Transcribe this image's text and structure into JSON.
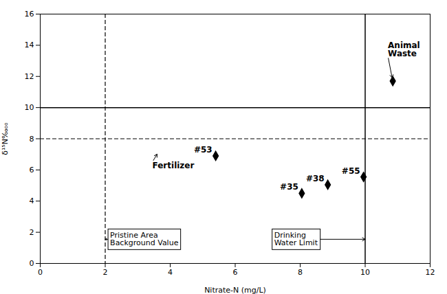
{
  "chart_data": {
    "type": "scatter",
    "xlabel": "Nitrate-N (mg/L)",
    "ylabel": "δ¹⁵N‰ₒₒ",
    "xlim": [
      0,
      12
    ],
    "ylim": [
      0,
      16
    ],
    "xticks": [
      0,
      2,
      4,
      6,
      8,
      10,
      12
    ],
    "yticks": [
      0,
      2,
      4,
      6,
      8,
      10,
      12,
      14,
      16
    ],
    "x": [
      5.4,
      8.05,
      8.85,
      9.95,
      10.85
    ],
    "y": [
      6.9,
      4.5,
      5.05,
      5.55,
      11.7
    ],
    "point_labels": [
      "#53",
      "#35",
      "#38",
      "#55",
      null
    ],
    "color": "black",
    "marker": "diamond",
    "hlines": [
      {
        "y": 10,
        "line_style": "solid"
      },
      {
        "y": 8,
        "line_style": "dashed"
      }
    ],
    "vlines": [
      {
        "x": 2,
        "line_style": "dashed"
      },
      {
        "x": 10,
        "line_style": "solid"
      }
    ],
    "annotations": [
      {
        "text": "Animal\nWaste",
        "x": 10.7,
        "y": 13.3,
        "arrow_to": [
          10.85,
          11.7
        ]
      },
      {
        "text": "Fertilizer",
        "x": 3.45,
        "y": 6.5,
        "arrow_to": [
          3.65,
          7.2
        ]
      }
    ],
    "box_annotations": [
      {
        "text": "Pristine Area\nBackground Value",
        "x": 2.15,
        "y": 1.55,
        "arrow_to": [
          2.0,
          1.55
        ]
      },
      {
        "text": "Drinking\nWater Limit",
        "x": 7.2,
        "y": 1.55,
        "arrow_to": [
          10.0,
          1.55
        ]
      }
    ]
  }
}
